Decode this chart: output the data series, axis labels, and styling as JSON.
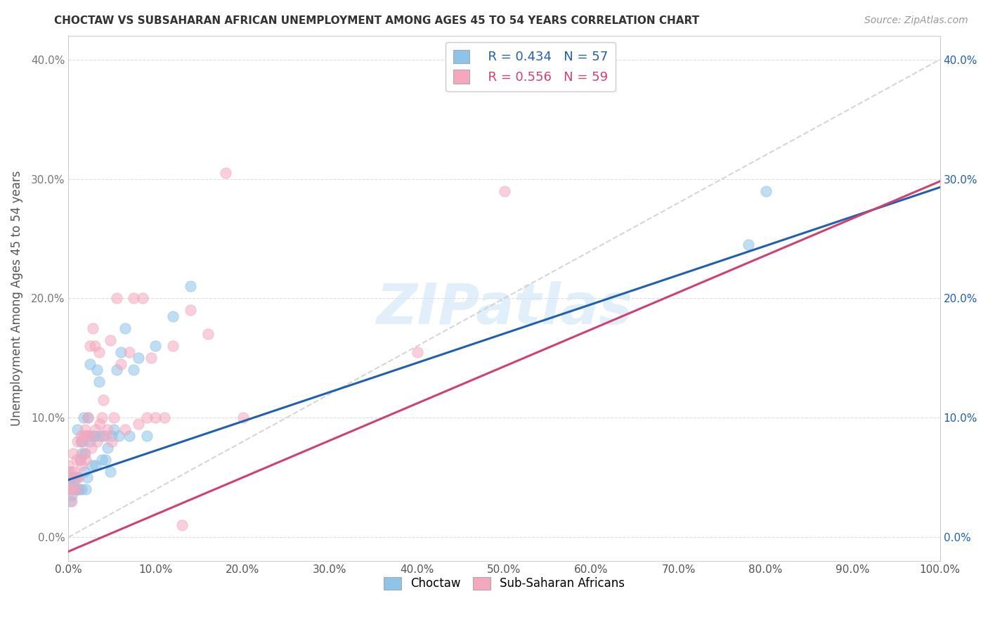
{
  "title": "CHOCTAW VS SUBSAHARAN AFRICAN UNEMPLOYMENT AMONG AGES 45 TO 54 YEARS CORRELATION CHART",
  "source": "Source: ZipAtlas.com",
  "ylabel": "Unemployment Among Ages 45 to 54 years",
  "xlim": [
    0.0,
    1.0
  ],
  "ylim": [
    -0.02,
    0.42
  ],
  "xticks": [
    0.0,
    0.1,
    0.2,
    0.3,
    0.4,
    0.5,
    0.6,
    0.7,
    0.8,
    0.9,
    1.0
  ],
  "yticks": [
    0.0,
    0.1,
    0.2,
    0.3,
    0.4
  ],
  "xticklabels": [
    "0.0%",
    "10.0%",
    "20.0%",
    "30.0%",
    "40.0%",
    "50.0%",
    "60.0%",
    "70.0%",
    "80.0%",
    "90.0%",
    "100.0%"
  ],
  "yticklabels": [
    "0.0%",
    "10.0%",
    "20.0%",
    "30.0%",
    "40.0%"
  ],
  "legend_r1": "R = 0.434",
  "legend_n1": "N = 57",
  "legend_r2": "R = 0.556",
  "legend_n2": "N = 59",
  "color_blue": "#8dc4e8",
  "color_pink": "#f4a8be",
  "color_blue_line": "#2060b0",
  "color_pink_line": "#d04070",
  "color_diag": "#cccccc",
  "watermark": "ZIPatlas",
  "choctaw_x": [
    0.0,
    0.0,
    0.002,
    0.003,
    0.004,
    0.005,
    0.005,
    0.006,
    0.007,
    0.008,
    0.009,
    0.01,
    0.01,
    0.01,
    0.012,
    0.013,
    0.014,
    0.015,
    0.015,
    0.016,
    0.017,
    0.018,
    0.019,
    0.02,
    0.02,
    0.021,
    0.022,
    0.023,
    0.025,
    0.025,
    0.027,
    0.028,
    0.03,
    0.031,
    0.033,
    0.035,
    0.036,
    0.038,
    0.04,
    0.042,
    0.045,
    0.048,
    0.05,
    0.052,
    0.055,
    0.058,
    0.06,
    0.065,
    0.07,
    0.075,
    0.08,
    0.09,
    0.1,
    0.12,
    0.14,
    0.78,
    0.8
  ],
  "choctaw_y": [
    0.05,
    0.055,
    0.03,
    0.042,
    0.035,
    0.04,
    0.05,
    0.045,
    0.05,
    0.05,
    0.04,
    0.04,
    0.05,
    0.09,
    0.04,
    0.065,
    0.08,
    0.04,
    0.07,
    0.08,
    0.1,
    0.055,
    0.07,
    0.04,
    0.085,
    0.05,
    0.1,
    0.085,
    0.08,
    0.145,
    0.06,
    0.085,
    0.085,
    0.06,
    0.14,
    0.13,
    0.085,
    0.065,
    0.085,
    0.065,
    0.075,
    0.055,
    0.085,
    0.09,
    0.14,
    0.085,
    0.155,
    0.175,
    0.085,
    0.14,
    0.15,
    0.085,
    0.16,
    0.185,
    0.21,
    0.245,
    0.29
  ],
  "subsaharan_x": [
    0.0,
    0.0,
    0.0,
    0.002,
    0.003,
    0.004,
    0.005,
    0.005,
    0.006,
    0.008,
    0.009,
    0.01,
    0.01,
    0.012,
    0.013,
    0.014,
    0.015,
    0.016,
    0.017,
    0.018,
    0.019,
    0.02,
    0.021,
    0.022,
    0.023,
    0.025,
    0.026,
    0.028,
    0.03,
    0.031,
    0.033,
    0.035,
    0.036,
    0.038,
    0.04,
    0.042,
    0.045,
    0.048,
    0.05,
    0.052,
    0.055,
    0.06,
    0.065,
    0.07,
    0.075,
    0.08,
    0.085,
    0.09,
    0.095,
    0.1,
    0.11,
    0.12,
    0.13,
    0.14,
    0.16,
    0.18,
    0.2,
    0.4,
    0.5
  ],
  "subsaharan_y": [
    0.04,
    0.05,
    0.06,
    0.04,
    0.055,
    0.03,
    0.04,
    0.07,
    0.055,
    0.05,
    0.065,
    0.04,
    0.08,
    0.05,
    0.065,
    0.085,
    0.06,
    0.08,
    0.085,
    0.07,
    0.09,
    0.065,
    0.085,
    0.1,
    0.085,
    0.16,
    0.075,
    0.175,
    0.16,
    0.09,
    0.08,
    0.155,
    0.095,
    0.1,
    0.115,
    0.085,
    0.09,
    0.165,
    0.08,
    0.1,
    0.2,
    0.145,
    0.09,
    0.155,
    0.2,
    0.095,
    0.2,
    0.1,
    0.15,
    0.1,
    0.1,
    0.16,
    0.01,
    0.19,
    0.17,
    0.305,
    0.1,
    0.155,
    0.29
  ]
}
